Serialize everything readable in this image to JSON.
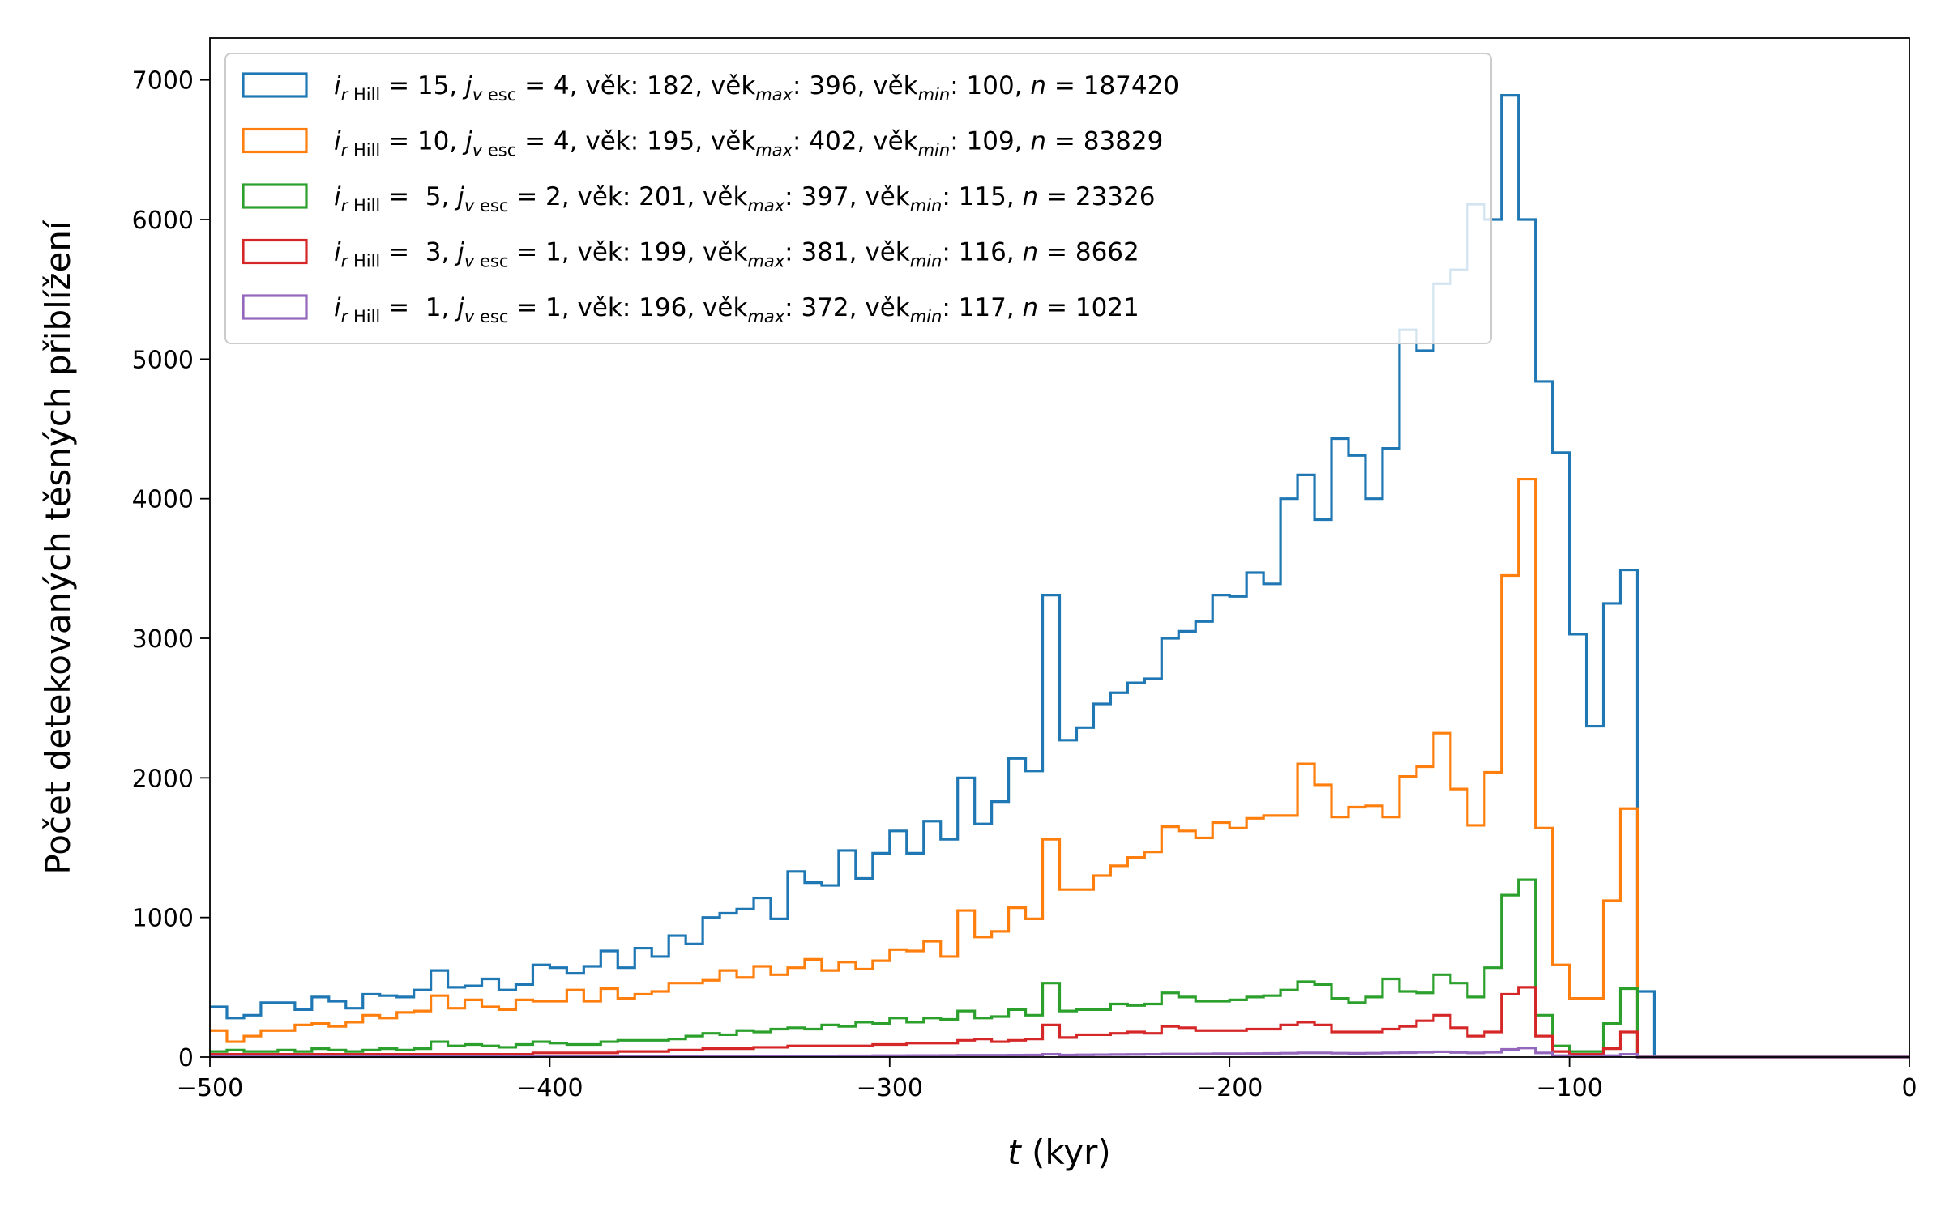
{
  "chart_data": {
    "type": "histogram-step",
    "xlabel": {
      "italic": "t",
      "rest": " (kyr)"
    },
    "ylabel": "Počet detekovaných těsných přiblížení",
    "xlim": [
      -500,
      0
    ],
    "ylim": [
      0,
      7300
    ],
    "xticks": [
      -500,
      -400,
      -300,
      -200,
      -100,
      0
    ],
    "xtick_labels": [
      "−500",
      "−400",
      "−300",
      "−200",
      "−100",
      "0"
    ],
    "yticks": [
      0,
      1000,
      2000,
      3000,
      4000,
      5000,
      6000,
      7000
    ],
    "ytick_labels": [
      "0",
      "1000",
      "2000",
      "3000",
      "4000",
      "5000",
      "6000",
      "7000"
    ],
    "bin_edges_start": -500,
    "bin_width": 5,
    "legend_position": "upper-left",
    "series": [
      {
        "i_rhill": "15",
        "j_vesc": "4",
        "vek": "182",
        "vek_max": "396",
        "vek_min": "100",
        "n": "187420",
        "color": "#1f77b4",
        "values": [
          360,
          280,
          300,
          390,
          390,
          340,
          430,
          400,
          350,
          450,
          440,
          430,
          480,
          620,
          500,
          510,
          560,
          480,
          520,
          660,
          640,
          600,
          650,
          760,
          640,
          780,
          720,
          870,
          810,
          1000,
          1030,
          1060,
          1140,
          990,
          1330,
          1250,
          1230,
          1480,
          1280,
          1460,
          1620,
          1460,
          1690,
          1560,
          2000,
          1670,
          1830,
          2140,
          2050,
          3310,
          2270,
          2360,
          2530,
          2610,
          2680,
          2710,
          3000,
          3050,
          3120,
          3310,
          3300,
          3470,
          3390,
          4000,
          4170,
          3850,
          4430,
          4310,
          4000,
          4360,
          5210,
          5060,
          5540,
          5640,
          6110,
          6000,
          6890,
          6000,
          4840,
          4330,
          3030,
          2370,
          3250,
          3490,
          470,
          0,
          0,
          0,
          0,
          0,
          0,
          0,
          0,
          0,
          0,
          0,
          0,
          0,
          0,
          0
        ]
      },
      {
        "i_rhill": "10",
        "j_vesc": "4",
        "vek": "195",
        "vek_max": "402",
        "vek_min": "109",
        "n": "83829",
        "color": "#ff7f0e",
        "values": [
          190,
          110,
          150,
          190,
          190,
          230,
          240,
          220,
          250,
          300,
          280,
          320,
          330,
          440,
          350,
          410,
          360,
          340,
          410,
          400,
          400,
          480,
          400,
          490,
          420,
          450,
          470,
          530,
          530,
          550,
          620,
          570,
          650,
          590,
          640,
          700,
          620,
          680,
          630,
          690,
          770,
          760,
          830,
          720,
          1050,
          860,
          900,
          1070,
          990,
          1560,
          1200,
          1200,
          1300,
          1370,
          1430,
          1470,
          1650,
          1620,
          1570,
          1680,
          1640,
          1710,
          1730,
          1730,
          2100,
          1950,
          1720,
          1790,
          1800,
          1720,
          2010,
          2080,
          2320,
          1920,
          1660,
          2040,
          3450,
          4140,
          1640,
          660,
          420,
          420,
          1120,
          1780,
          0,
          0,
          0,
          0,
          0,
          0,
          0,
          0,
          0,
          0,
          0,
          0,
          0,
          0,
          0,
          0
        ]
      },
      {
        "i_rhill": "5",
        "j_vesc": "2",
        "vek": "201",
        "vek_max": "397",
        "vek_min": "115",
        "n": "23326",
        "color": "#2ca02c",
        "values": [
          40,
          50,
          40,
          40,
          50,
          40,
          60,
          50,
          40,
          50,
          60,
          50,
          60,
          110,
          80,
          90,
          80,
          70,
          90,
          110,
          100,
          90,
          90,
          110,
          120,
          120,
          120,
          130,
          150,
          170,
          160,
          190,
          180,
          200,
          210,
          200,
          230,
          220,
          250,
          240,
          280,
          250,
          280,
          270,
          330,
          280,
          290,
          340,
          300,
          530,
          330,
          340,
          340,
          380,
          370,
          380,
          460,
          430,
          400,
          400,
          410,
          430,
          440,
          480,
          540,
          520,
          420,
          390,
          430,
          560,
          470,
          460,
          590,
          530,
          430,
          640,
          1160,
          1270,
          300,
          80,
          40,
          40,
          240,
          490,
          0,
          0,
          0,
          0,
          0,
          0,
          0,
          0,
          0,
          0,
          0,
          0,
          0,
          0,
          0,
          0
        ]
      },
      {
        "i_rhill": "3",
        "j_vesc": "1",
        "vek": "199",
        "vek_max": "381",
        "vek_min": "116",
        "n": "8662",
        "color": "#d62728",
        "values": [
          20,
          20,
          20,
          20,
          20,
          20,
          20,
          20,
          20,
          20,
          20,
          20,
          20,
          20,
          20,
          20,
          20,
          20,
          20,
          30,
          30,
          30,
          30,
          30,
          40,
          40,
          40,
          50,
          50,
          60,
          60,
          60,
          70,
          70,
          80,
          80,
          80,
          80,
          80,
          90,
          90,
          100,
          100,
          100,
          120,
          130,
          110,
          120,
          130,
          230,
          140,
          160,
          160,
          170,
          180,
          170,
          220,
          210,
          190,
          190,
          190,
          200,
          200,
          230,
          250,
          230,
          180,
          180,
          180,
          200,
          220,
          260,
          300,
          210,
          150,
          180,
          450,
          500,
          150,
          40,
          20,
          20,
          60,
          180,
          0,
          0,
          0,
          0,
          0,
          0,
          0,
          0,
          0,
          0,
          0,
          0,
          0,
          0,
          0,
          0
        ]
      },
      {
        "i_rhill": "1",
        "j_vesc": "1",
        "vek": "196",
        "vek_max": "372",
        "vek_min": "117",
        "n": "1021",
        "color": "#9467bd",
        "values": [
          3,
          3,
          3,
          3,
          3,
          3,
          3,
          3,
          3,
          3,
          3,
          3,
          3,
          3,
          3,
          3,
          3,
          3,
          3,
          4,
          4,
          4,
          4,
          4,
          5,
          5,
          5,
          5,
          5,
          6,
          6,
          6,
          7,
          7,
          8,
          8,
          8,
          9,
          9,
          10,
          10,
          11,
          11,
          12,
          13,
          13,
          13,
          14,
          15,
          20,
          15,
          16,
          17,
          18,
          19,
          20,
          22,
          22,
          23,
          24,
          24,
          25,
          26,
          28,
          30,
          30,
          28,
          27,
          28,
          30,
          32,
          35,
          38,
          33,
          30,
          35,
          55,
          65,
          30,
          10,
          5,
          5,
          10,
          20,
          0,
          0,
          0,
          0,
          0,
          0,
          0,
          0,
          0,
          0,
          0,
          0,
          0,
          0,
          0,
          0
        ]
      }
    ]
  }
}
